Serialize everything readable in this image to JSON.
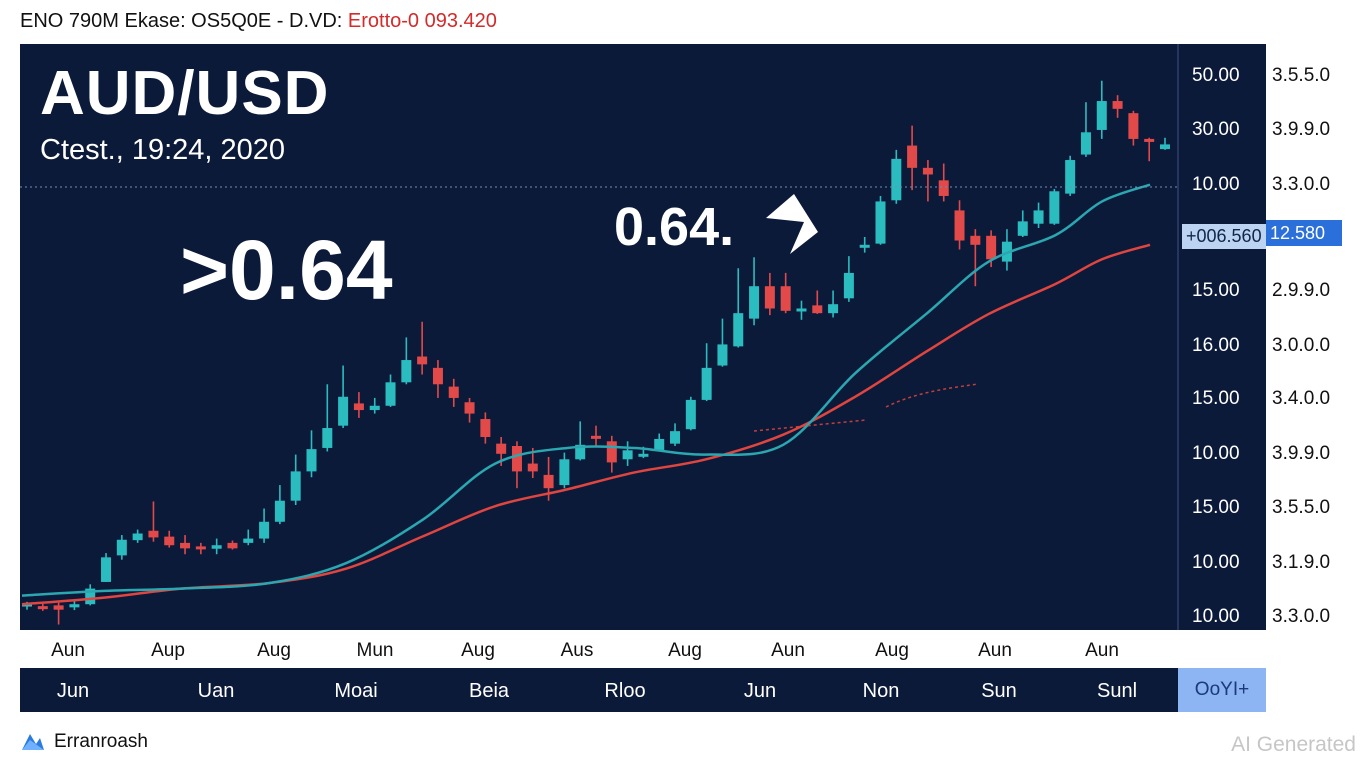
{
  "header": {
    "text_main": "ENO 790M Ekase: OS5Q0E - D.VD:",
    "text_red": "Erotto-0 093.420"
  },
  "title": "AUD/USD",
  "subtitle": "Ctest., 19:24, 2020",
  "big_price": ">0.64",
  "callout": "0.64.",
  "price_tag_left": "+006.560",
  "price_tag_right": "12.580",
  "axis_inner": [
    "50.00",
    "30.00",
    "10.00",
    "15.00",
    "16.00",
    "15.00",
    "10.00",
    "15.00",
    "10.00",
    "10.00"
  ],
  "axis_outer": [
    "3.5.5.0",
    "3.9.9.0",
    "3.3.0.0",
    "2.9.9.0",
    "3.0.0.0",
    "3.4.0.0",
    "3.9.9.0",
    "3.5.5.0",
    "3.1.9.0",
    "3.3.0.0"
  ],
  "month_labels": [
    "Aun",
    "Aup",
    "Aug",
    "Mun",
    "Aug",
    "Aus",
    "Aug",
    "Aun",
    "Aug",
    "Aun",
    "Aun"
  ],
  "nav_labels": [
    "Jun",
    "Uan",
    "Moai",
    "Beia",
    "Rloo",
    "Jun",
    "Non",
    "Sun",
    "Sunl"
  ],
  "nav_button": "OoYI+",
  "brand": "Erranroash",
  "watermark": "AI Generated",
  "colors": {
    "background": "#0c1a3a",
    "up": "#2bbcc0",
    "down": "#e24a4a",
    "ma_fast": "#2aa7b0",
    "ma_slow": "#e0453f",
    "tag": "#2b6fdb"
  },
  "chart_data": {
    "type": "candlestick",
    "candles": [
      [
        0.582,
        0.5829,
        0.5812,
        0.5832
      ],
      [
        0.5821,
        0.5817,
        0.5809,
        0.5827
      ],
      [
        0.5823,
        0.5812,
        0.5774,
        0.583
      ],
      [
        0.5818,
        0.5826,
        0.5811,
        0.5834
      ],
      [
        0.5826,
        0.5866,
        0.5823,
        0.5877
      ],
      [
        0.5883,
        0.5946,
        0.5883,
        0.5957
      ],
      [
        0.5951,
        0.5991,
        0.594,
        0.6003
      ],
      [
        0.599,
        0.6007,
        0.5983,
        0.6017
      ],
      [
        0.6014,
        0.5997,
        0.5986,
        0.6089
      ],
      [
        0.5999,
        0.5977,
        0.5971,
        0.6014
      ],
      [
        0.5983,
        0.5969,
        0.5954,
        0.6003
      ],
      [
        0.5974,
        0.5968,
        0.5954,
        0.5983
      ],
      [
        0.5968,
        0.5977,
        0.5954,
        0.5994
      ],
      [
        0.5983,
        0.5969,
        0.5966,
        0.5989
      ],
      [
        0.5983,
        0.5994,
        0.5977,
        0.6017
      ],
      [
        0.5994,
        0.6037,
        0.5983,
        0.6071
      ],
      [
        0.6037,
        0.6091,
        0.6031,
        0.6131
      ],
      [
        0.6091,
        0.6166,
        0.608,
        0.6209
      ],
      [
        0.6166,
        0.6223,
        0.6151,
        0.6271
      ],
      [
        0.6226,
        0.6277,
        0.6217,
        0.6389
      ],
      [
        0.6283,
        0.6357,
        0.6277,
        0.6437
      ],
      [
        0.634,
        0.6323,
        0.6303,
        0.6369
      ],
      [
        0.6323,
        0.6334,
        0.6314,
        0.6354
      ],
      [
        0.6334,
        0.6394,
        0.6331,
        0.6414
      ],
      [
        0.6394,
        0.6451,
        0.6389,
        0.6509
      ],
      [
        0.646,
        0.644,
        0.6414,
        0.6549
      ],
      [
        0.6431,
        0.6389,
        0.6354,
        0.6451
      ],
      [
        0.6383,
        0.6354,
        0.6331,
        0.6403
      ],
      [
        0.6343,
        0.6314,
        0.6291,
        0.6354
      ],
      [
        0.63,
        0.6254,
        0.6237,
        0.6317
      ],
      [
        0.6237,
        0.6211,
        0.618,
        0.6254
      ],
      [
        0.6231,
        0.6166,
        0.6123,
        0.6243
      ],
      [
        0.6186,
        0.6166,
        0.6149,
        0.6226
      ],
      [
        0.6157,
        0.6123,
        0.6091,
        0.6203
      ],
      [
        0.6131,
        0.6197,
        0.6123,
        0.6214
      ],
      [
        0.6197,
        0.6234,
        0.6194,
        0.6294
      ],
      [
        0.6257,
        0.6251,
        0.6231,
        0.6283
      ],
      [
        0.6243,
        0.6189,
        0.6163,
        0.6257
      ],
      [
        0.6197,
        0.622,
        0.618,
        0.6243
      ],
      [
        0.6209,
        0.6211,
        0.62,
        0.6229
      ],
      [
        0.622,
        0.6249,
        0.6217,
        0.6263
      ],
      [
        0.6237,
        0.6269,
        0.6231,
        0.6289
      ],
      [
        0.6274,
        0.6349,
        0.6271,
        0.6357
      ],
      [
        0.6349,
        0.6431,
        0.6346,
        0.6494
      ],
      [
        0.6437,
        0.6491,
        0.6434,
        0.6557
      ],
      [
        0.6486,
        0.6571,
        0.6483,
        0.6686
      ],
      [
        0.6557,
        0.664,
        0.654,
        0.6714
      ],
      [
        0.664,
        0.6583,
        0.6566,
        0.6674
      ],
      [
        0.664,
        0.6577,
        0.6571,
        0.6674
      ],
      [
        0.6577,
        0.6583,
        0.6554,
        0.6603
      ],
      [
        0.6591,
        0.6571,
        0.6569,
        0.6629
      ],
      [
        0.6571,
        0.6594,
        0.656,
        0.6629
      ],
      [
        0.6609,
        0.6674,
        0.66,
        0.6717
      ],
      [
        0.674,
        0.6746,
        0.6726,
        0.6766
      ],
      [
        0.6749,
        0.6857,
        0.6746,
        0.6871
      ],
      [
        0.686,
        0.6966,
        0.6851,
        0.6989
      ],
      [
        0.7,
        0.6943,
        0.6886,
        0.7051
      ],
      [
        0.6943,
        0.6926,
        0.6857,
        0.6963
      ],
      [
        0.6911,
        0.6871,
        0.6857,
        0.6954
      ],
      [
        0.6834,
        0.6757,
        0.6734,
        0.686
      ],
      [
        0.6769,
        0.6746,
        0.664,
        0.6786
      ],
      [
        0.6769,
        0.6709,
        0.6689,
        0.6783
      ],
      [
        0.6703,
        0.6754,
        0.668,
        0.6786
      ],
      [
        0.6769,
        0.6806,
        0.6766,
        0.6834
      ],
      [
        0.68,
        0.6834,
        0.6789,
        0.6854
      ],
      [
        0.68,
        0.6883,
        0.6797,
        0.6889
      ],
      [
        0.6877,
        0.6963,
        0.6871,
        0.6974
      ],
      [
        0.6977,
        0.7034,
        0.6971,
        0.7111
      ],
      [
        0.704,
        0.7114,
        0.7017,
        0.7166
      ],
      [
        0.7114,
        0.7094,
        0.7071,
        0.7129
      ],
      [
        0.7083,
        0.7017,
        0.7,
        0.7089
      ],
      [
        0.7017,
        0.7011,
        0.696,
        0.702
      ],
      [
        0.6991,
        0.7003,
        0.6989,
        0.702
      ]
    ],
    "ma_fast": [
      [
        0.0,
        0.5848
      ],
      [
        0.0729,
        0.586
      ],
      [
        0.1413,
        0.5866
      ],
      [
        0.2188,
        0.588
      ],
      [
        0.2872,
        0.5931
      ],
      [
        0.3556,
        0.6043
      ],
      [
        0.4195,
        0.6186
      ],
      [
        0.4833,
        0.6226
      ],
      [
        0.5426,
        0.6226
      ],
      [
        0.6064,
        0.6209
      ],
      [
        0.6748,
        0.6234
      ],
      [
        0.7386,
        0.6417
      ],
      [
        0.8024,
        0.6571
      ],
      [
        0.8571,
        0.6703
      ],
      [
        0.9164,
        0.6771
      ],
      [
        0.9575,
        0.6857
      ],
      [
        1.0,
        0.69
      ]
    ],
    "ma_slow": [
      [
        0.0,
        0.5826
      ],
      [
        0.0729,
        0.5843
      ],
      [
        0.1413,
        0.5866
      ],
      [
        0.2188,
        0.588
      ],
      [
        0.2872,
        0.5917
      ],
      [
        0.3556,
        0.6
      ],
      [
        0.4195,
        0.6077
      ],
      [
        0.4833,
        0.612
      ],
      [
        0.5426,
        0.6163
      ],
      [
        0.6064,
        0.6197
      ],
      [
        0.6748,
        0.626
      ],
      [
        0.7386,
        0.6357
      ],
      [
        0.8024,
        0.6474
      ],
      [
        0.8571,
        0.6569
      ],
      [
        0.9164,
        0.6646
      ],
      [
        0.9575,
        0.6709
      ],
      [
        1.0,
        0.6746
      ]
    ],
    "ylim": [
      0.576,
      0.726
    ],
    "current_price": 0.6894
  }
}
